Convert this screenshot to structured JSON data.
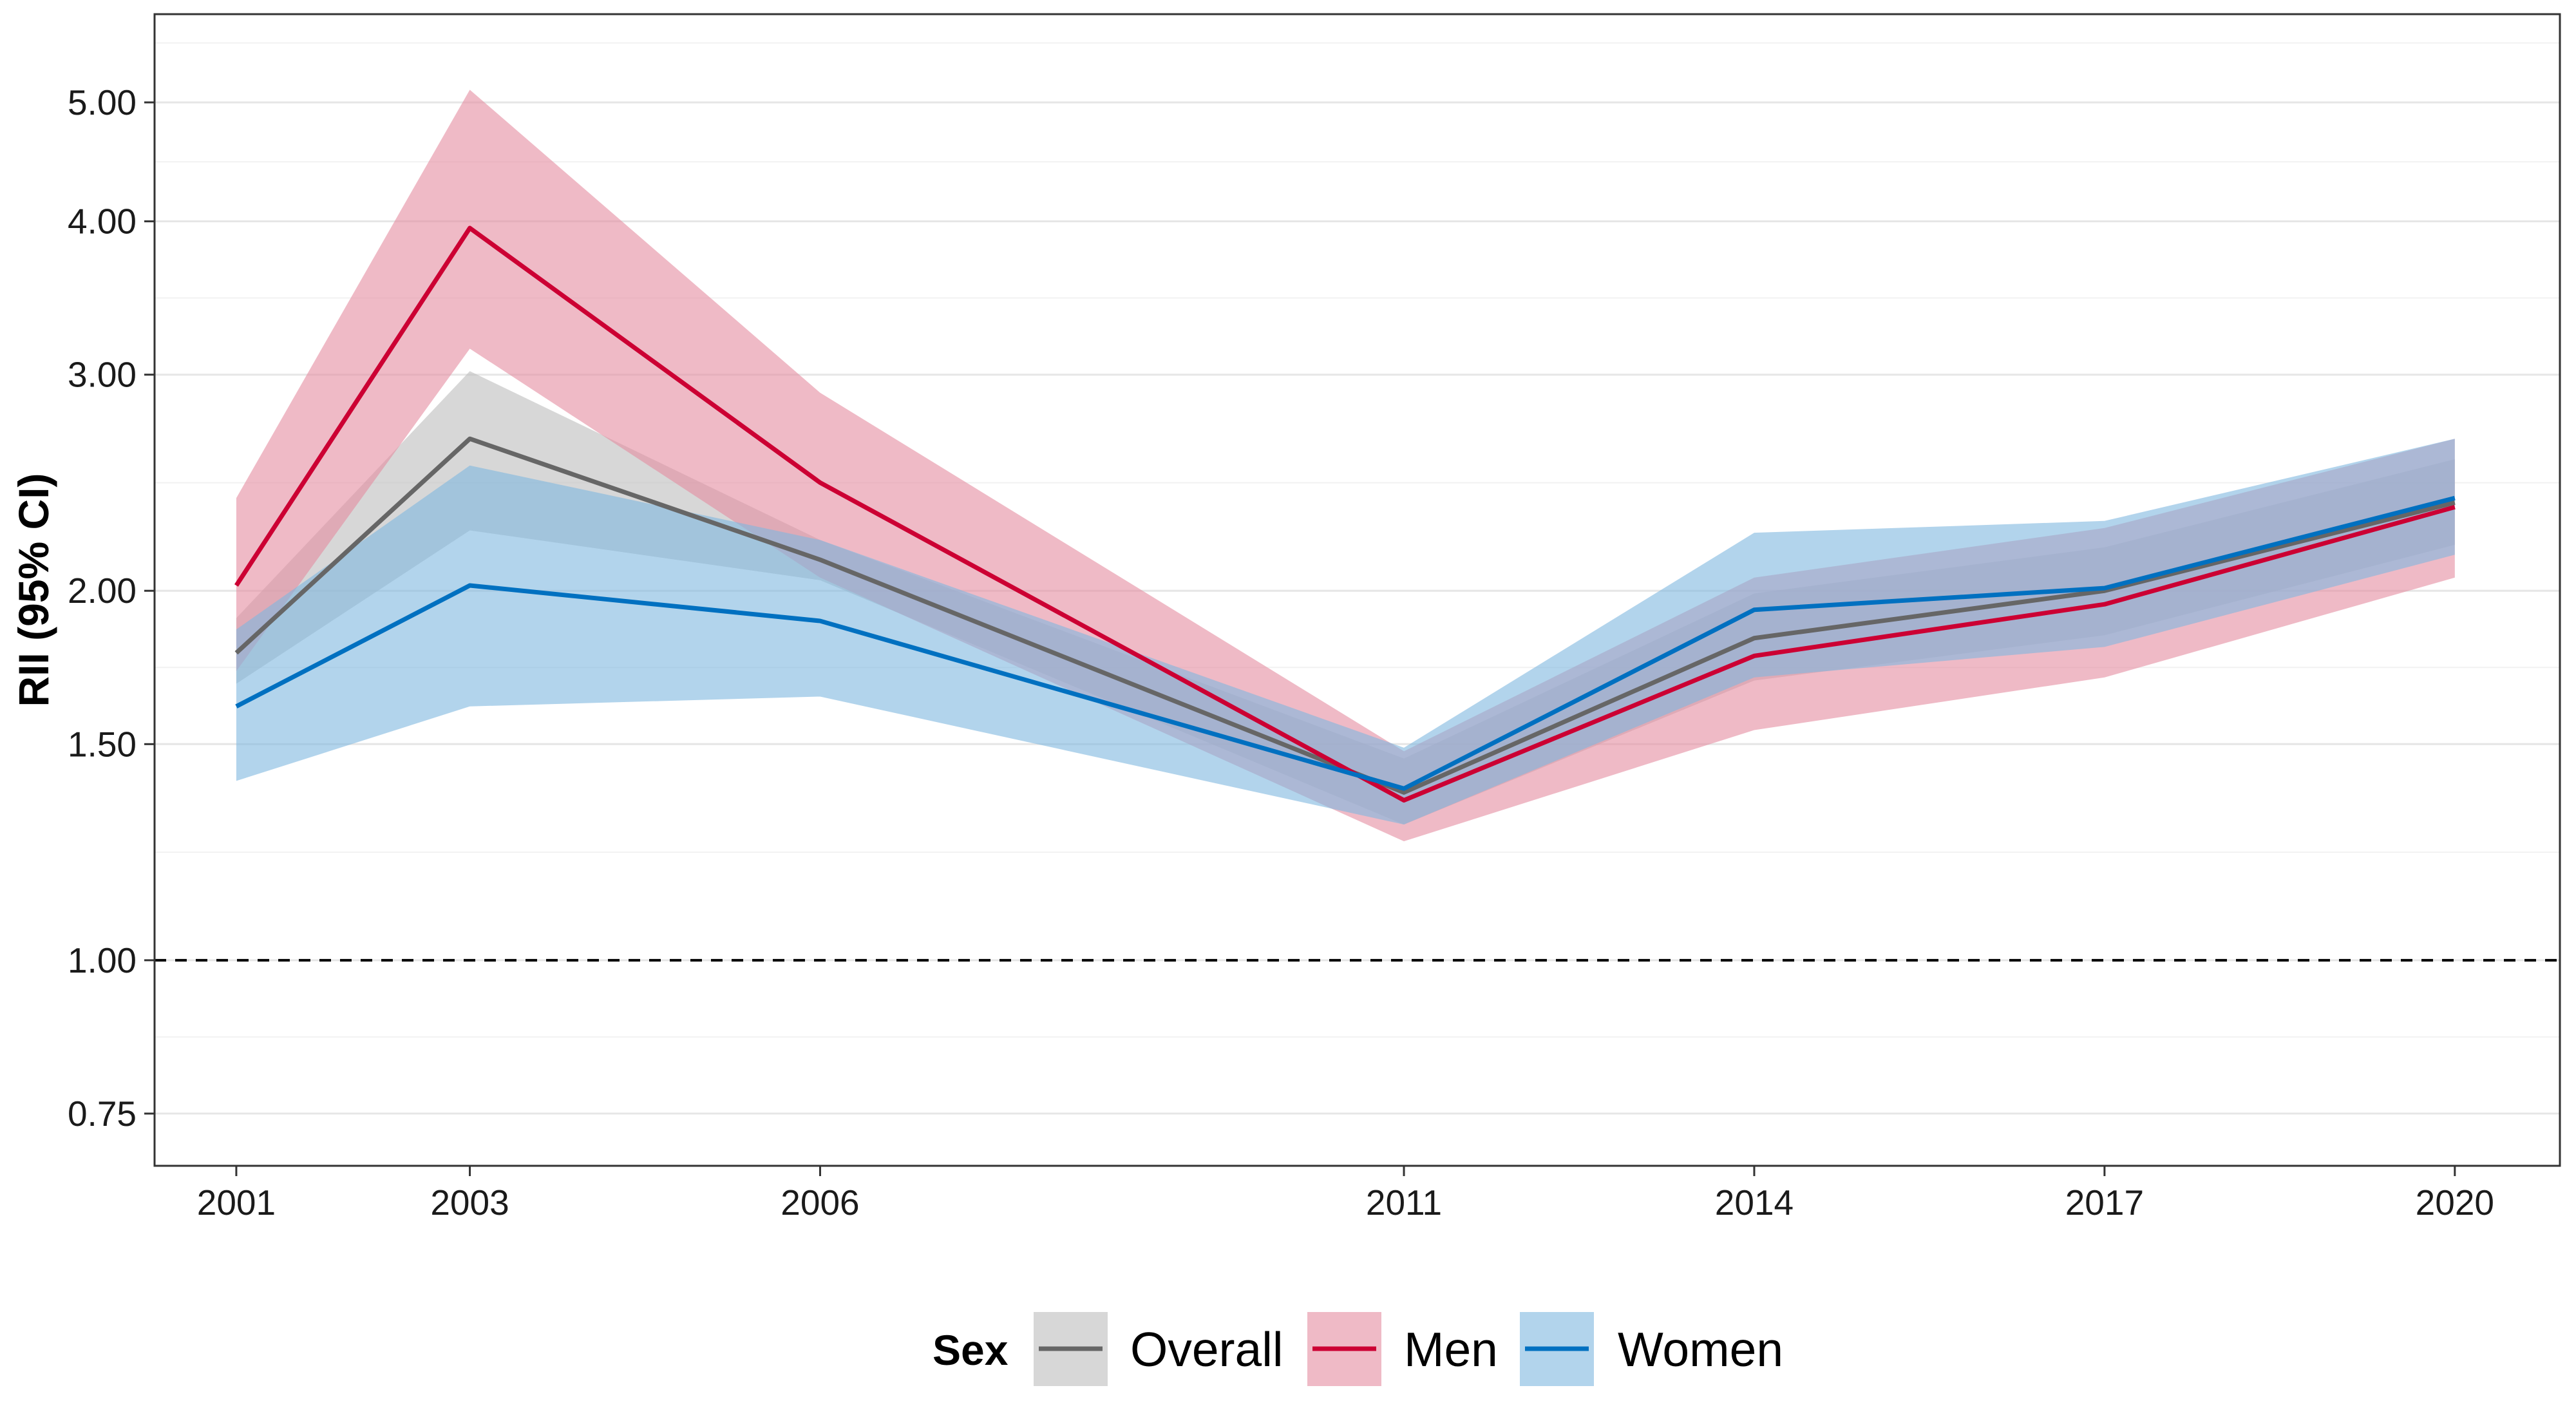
{
  "chart_data": {
    "type": "line",
    "title": "",
    "xlabel": "",
    "ylabel": "RII (95% CI)",
    "y_scale": "log",
    "ylim": [
      0.68,
      5.9
    ],
    "xlim": [
      2000.3,
      2020.9
    ],
    "grid": true,
    "x": [
      2001,
      2003,
      2006,
      2011,
      2014,
      2017,
      2020
    ],
    "x_tick_labels": [
      "2001",
      "2003",
      "2006",
      "2011",
      "2014",
      "2017",
      "2020"
    ],
    "y_ticks": [
      0.75,
      1.0,
      1.5,
      2.0,
      3.0,
      4.0,
      5.0
    ],
    "y_tick_labels": [
      "0.75",
      "1.00",
      "1.50",
      "2.00",
      "3.00",
      "4.00",
      "5.00"
    ],
    "reference_line": {
      "y": 1.0,
      "style": "dashed"
    },
    "legend": {
      "title": "Sex",
      "position": "bottom"
    },
    "series": [
      {
        "name": "Overall",
        "line_color": "#666666",
        "band_color": "#bdbdbd",
        "values": [
          1.78,
          2.66,
          2.12,
          1.37,
          1.83,
          2.0,
          2.36
        ],
        "lower": [
          1.68,
          2.24,
          2.04,
          1.29,
          1.69,
          1.84,
          2.18
        ],
        "upper": [
          1.9,
          3.02,
          2.2,
          1.46,
          1.99,
          2.17,
          2.56
        ]
      },
      {
        "name": "Men",
        "line_color": "#cc0033",
        "band_color": "#e58ca0",
        "values": [
          2.02,
          3.95,
          2.45,
          1.35,
          1.77,
          1.95,
          2.34
        ],
        "lower": [
          1.72,
          3.15,
          2.05,
          1.25,
          1.54,
          1.7,
          2.05
        ],
        "upper": [
          2.38,
          5.12,
          2.9,
          1.48,
          2.05,
          2.25,
          2.66
        ]
      },
      {
        "name": "Women",
        "line_color": "#0070c0",
        "band_color": "#7fb8e0",
        "values": [
          1.61,
          2.02,
          1.89,
          1.38,
          1.93,
          2.01,
          2.38
        ],
        "lower": [
          1.4,
          1.61,
          1.64,
          1.29,
          1.7,
          1.8,
          2.14
        ],
        "upper": [
          1.86,
          2.53,
          2.2,
          1.49,
          2.23,
          2.28,
          2.66
        ]
      }
    ]
  }
}
